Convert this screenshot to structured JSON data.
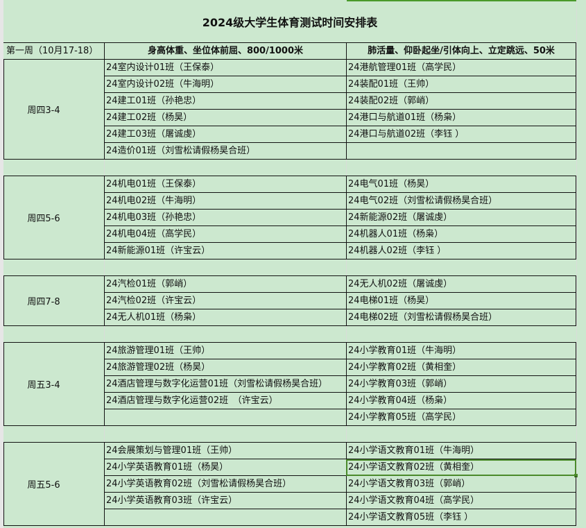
{
  "title": "2024级大学生体育测试时间安排表",
  "header": {
    "week": "第一周（10月17-18）",
    "col1": "身高体重、坐位体前屈、800/1000米",
    "col2": "肺活量、仰卧起坐/引体向上、立定跳远、50米"
  },
  "accent_color": "#4a8a2a",
  "selected_cell": {
    "group": 4,
    "row": 1,
    "column": "col2"
  },
  "groups": [
    {
      "slot": "周四3-4",
      "rows": [
        [
          "24室内设计01班（王保泰）",
          "24港航管理01班（高学民）"
        ],
        [
          "24室内设计02班（牛海明）",
          "24装配01班（王帅）"
        ],
        [
          "24建工01班（孙艳忠）",
          "24装配02班（郭峭）"
        ],
        [
          "24建工02班（杨昊）",
          "24港口与航道01班（杨枭）"
        ],
        [
          "24建工03班（屠诚虔）",
          "24港口与航道02班（李钰 ）"
        ],
        [
          "24造价01班（刘雪松请假杨昊合班）",
          ""
        ]
      ]
    },
    {
      "slot": "周四5-6",
      "rows": [
        [
          "24机电01班（王保泰）",
          "24电气01班（杨昊）"
        ],
        [
          "24机电02班（牛海明）",
          "24电气02班（刘雪松请假杨昊合班）"
        ],
        [
          "24机电03班（孙艳忠）",
          "24新能源02班（屠诚虔）"
        ],
        [
          "24机电04班（高学民）",
          "24机器人01班（杨枭）"
        ],
        [
          "24新能源01班（许宝云）",
          "24机器人02班（李钰 ）"
        ]
      ]
    },
    {
      "slot": "周四7-8",
      "rows": [
        [
          "24汽检01班（郭峭）",
          "24无人机02班（屠诚虔）"
        ],
        [
          "24汽检02班（许宝云）",
          "24电梯01班（杨昊）"
        ],
        [
          "24无人机01班（杨枭）",
          "24电梯02班（刘雪松请假杨昊合班）"
        ]
      ]
    },
    {
      "slot": "周五3-4",
      "rows": [
        [
          "24旅游管理01班（王帅）",
          "24小学教育01班（牛海明）"
        ],
        [
          "24旅游管理02班（杨昊）",
          "24小学教育02班（黄相奎）"
        ],
        [
          "24酒店管理与数字化运营01班（刘雪松请假杨昊合班）",
          "24小学教育03班（郭峭）"
        ],
        [
          "24酒店管理与数字化运营02班　（许宝云）",
          "24小学教育04班（杨枭）"
        ],
        [
          "",
          "24小学教育05班（高学民）"
        ]
      ]
    },
    {
      "slot": "周五5-6",
      "rows": [
        [
          "24会展策划与管理01班（王帅）",
          "24小学语文教育01班（牛海明）"
        ],
        [
          "24小学英语教育01班（杨昊）",
          "24小学语文教育02班（黄相奎）"
        ],
        [
          "24小学英语教育02班（刘雪松请假杨昊合班）",
          "24小学语文教育03班（郭峭）"
        ],
        [
          "24小学英语教育03班（许宝云）",
          "24小学语文教育04班（高学民）"
        ],
        [
          "",
          "24小学语文教育05班（李钰 ）"
        ]
      ]
    }
  ]
}
